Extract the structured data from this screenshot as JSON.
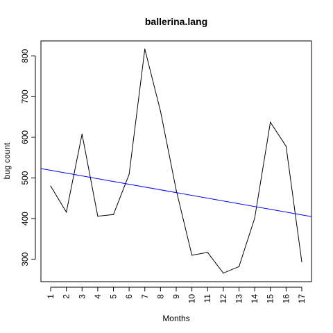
{
  "chart_data": {
    "type": "line",
    "title": "ballerina.lang",
    "xlabel": "Months",
    "ylabel": "bug count",
    "x": [
      1,
      2,
      3,
      4,
      5,
      6,
      7,
      8,
      9,
      10,
      11,
      12,
      13,
      14,
      15,
      16,
      17
    ],
    "x_tick_labels": [
      "1",
      "2",
      "3",
      "4",
      "5",
      "6",
      "7",
      "8",
      "9",
      "10",
      "11",
      "12",
      "13",
      "14",
      "15",
      "16",
      "17"
    ],
    "y_ticks": [
      300,
      400,
      500,
      600,
      700,
      800
    ],
    "y_tick_labels": [
      "300",
      "400",
      "500",
      "600",
      "700",
      "800"
    ],
    "xlim": [
      0.38,
      17.62
    ],
    "ylim": [
      245,
      837
    ],
    "grid": false,
    "series": [
      {
        "values": [
          480,
          416,
          608,
          406,
          410,
          509,
          817,
          664,
          470,
          310,
          317,
          266,
          282,
          401,
          637,
          578,
          294
        ],
        "color": "#000000"
      }
    ],
    "trend_line": {
      "color": "#0000ff",
      "x_range": [
        0.38,
        17.62
      ],
      "y_range": [
        523,
        405
      ]
    }
  }
}
